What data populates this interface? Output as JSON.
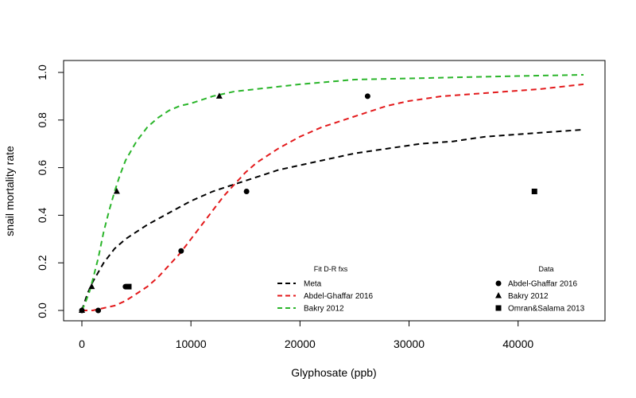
{
  "chart_data": {
    "type": "line",
    "title": "",
    "xlabel": "Glyphosate (ppb)",
    "ylabel": "snail mortality rate",
    "xlim": [
      0,
      46000
    ],
    "ylim": [
      0,
      1
    ],
    "x_ticks": [
      0,
      10000,
      20000,
      30000,
      40000
    ],
    "x_tick_labels": [
      "0",
      "10000",
      "20000",
      "30000",
      "40000"
    ],
    "y_ticks": [
      0.0,
      0.2,
      0.4,
      0.6,
      0.8,
      1.0
    ],
    "y_tick_labels": [
      "0.0",
      "0.2",
      "0.4",
      "0.6",
      "0.8",
      "1.0"
    ],
    "grid": false,
    "fit_legend": {
      "title": "Fit D-R fxs",
      "placement": "bottom-center"
    },
    "data_legend": {
      "title": "Data",
      "placement": "bottom-right"
    },
    "fit_series": [
      {
        "name": "Meta",
        "color": "#000000",
        "style": "dashed",
        "x": [
          0,
          500,
          1000,
          2000,
          3000,
          4000,
          5000,
          6000,
          8000,
          10000,
          12000,
          14000,
          16000,
          18000,
          20000,
          22000,
          25000,
          28000,
          31000,
          34000,
          37000,
          40000,
          43000,
          46000
        ],
        "y": [
          0.0,
          0.07,
          0.12,
          0.2,
          0.26,
          0.3,
          0.33,
          0.36,
          0.41,
          0.46,
          0.5,
          0.53,
          0.56,
          0.59,
          0.61,
          0.63,
          0.66,
          0.68,
          0.7,
          0.71,
          0.73,
          0.74,
          0.75,
          0.76
        ]
      },
      {
        "name": "Abdel-Ghaffar 2016",
        "color": "#e31a1c",
        "style": "dashed",
        "x": [
          0,
          1000,
          2000,
          3000,
          4000,
          5000,
          6000,
          7000,
          8000,
          9000,
          10000,
          11000,
          12000,
          13000,
          14000,
          15000,
          16000,
          18000,
          20000,
          22000,
          24000,
          26000,
          28000,
          30000,
          33000,
          36000,
          39000,
          42000,
          46000
        ],
        "y": [
          0.0,
          0.0,
          0.01,
          0.02,
          0.04,
          0.07,
          0.1,
          0.14,
          0.19,
          0.24,
          0.3,
          0.36,
          0.42,
          0.48,
          0.53,
          0.58,
          0.62,
          0.68,
          0.73,
          0.77,
          0.8,
          0.83,
          0.86,
          0.88,
          0.9,
          0.91,
          0.92,
          0.93,
          0.95
        ]
      },
      {
        "name": "Bakry 2012",
        "color": "#2ab52a",
        "style": "dashed",
        "x": [
          0,
          300,
          700,
          1000,
          1500,
          2000,
          2500,
          3000,
          3500,
          4000,
          5000,
          6000,
          7000,
          8000,
          9000,
          10000,
          12000,
          14000,
          16000,
          20000,
          25000,
          30000,
          35000,
          40000,
          46000
        ],
        "y": [
          0.0,
          0.03,
          0.08,
          0.13,
          0.22,
          0.33,
          0.42,
          0.5,
          0.57,
          0.63,
          0.71,
          0.77,
          0.81,
          0.84,
          0.86,
          0.87,
          0.9,
          0.92,
          0.93,
          0.95,
          0.97,
          0.975,
          0.98,
          0.985,
          0.99
        ]
      }
    ],
    "data_series": [
      {
        "name": "Abdel-Ghaffar 2016",
        "marker": "circle",
        "points": [
          [
            0,
            0.0
          ],
          [
            1500,
            0.0
          ],
          [
            4000,
            0.1
          ],
          [
            9100,
            0.25
          ],
          [
            15100,
            0.5
          ],
          [
            26200,
            0.9
          ]
        ]
      },
      {
        "name": "Bakry 2012",
        "marker": "triangle",
        "points": [
          [
            0,
            0.0
          ],
          [
            900,
            0.1
          ],
          [
            3200,
            0.5
          ],
          [
            12600,
            0.9
          ]
        ]
      },
      {
        "name": "Omran&Salama 2013",
        "marker": "square",
        "points": [
          [
            4300,
            0.1
          ],
          [
            41500,
            0.5
          ]
        ]
      }
    ]
  }
}
